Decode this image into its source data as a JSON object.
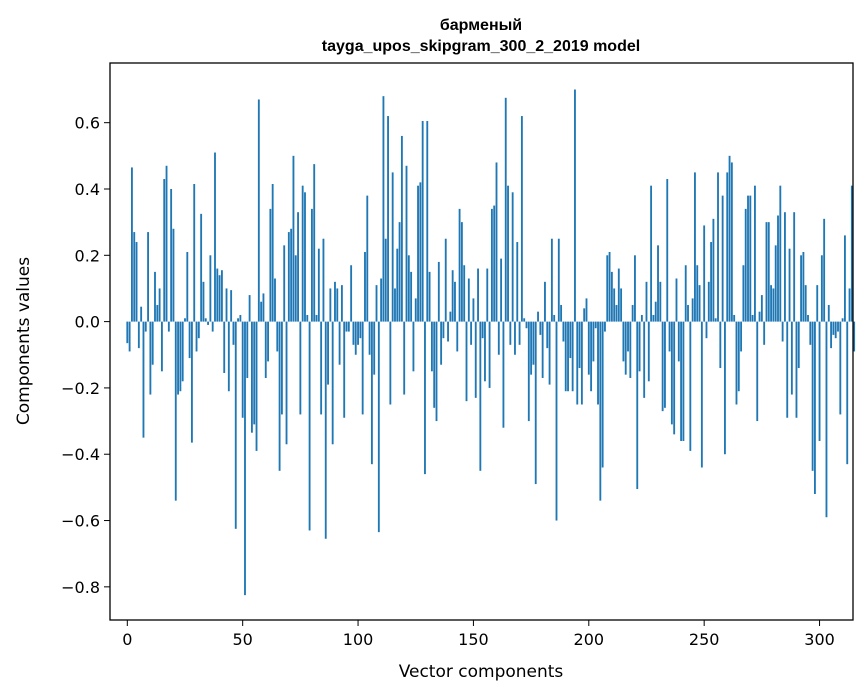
{
  "chart_data": {
    "type": "bar",
    "title": "барменый",
    "subtitle": "tayga_upos_skipgram_300_2_2019 model",
    "xlabel": "Vector components",
    "ylabel": "Components values",
    "xlim": [
      -7.5,
      314.5
    ],
    "ylim": [
      -0.9,
      0.78
    ],
    "xticks": [
      0,
      50,
      100,
      150,
      200,
      250,
      300
    ],
    "yticks": [
      -0.8,
      -0.6,
      -0.4,
      -0.2,
      0.0,
      0.2,
      0.4,
      0.6
    ],
    "ytick_labels": [
      "−0.8",
      "−0.6",
      "−0.4",
      "−0.2",
      "0.0",
      "0.2",
      "0.4",
      "0.6"
    ],
    "grid": false,
    "bar_color": "#1f77b4",
    "values": [
      -0.065,
      -0.09,
      0.465,
      0.27,
      0.24,
      -0.08,
      0.045,
      -0.35,
      -0.03,
      0.27,
      -0.22,
      -0.13,
      0.15,
      0.05,
      0.1,
      -0.15,
      0.43,
      0.47,
      -0.03,
      0.4,
      0.28,
      -0.54,
      -0.22,
      -0.21,
      -0.18,
      0.01,
      0.21,
      -0.11,
      -0.365,
      0.415,
      -0.09,
      -0.05,
      0.325,
      0.12,
      0.01,
      -0.01,
      0.2,
      -0.03,
      0.51,
      0.16,
      0.14,
      0.155,
      -0.155,
      0.1,
      -0.21,
      0.095,
      -0.07,
      -0.625,
      0.01,
      0.02,
      -0.29,
      -0.825,
      -0.17,
      0.08,
      -0.335,
      -0.31,
      -0.39,
      0.67,
      0.06,
      0.085,
      -0.17,
      -0.12,
      0.34,
      0.415,
      0.13,
      -0.09,
      -0.45,
      -0.28,
      0.23,
      -0.37,
      0.27,
      0.28,
      0.5,
      0.2,
      0.33,
      -0.28,
      0.41,
      0.39,
      0.02,
      -0.63,
      0.34,
      0.475,
      0.02,
      0.22,
      -0.28,
      0.25,
      -0.655,
      -0.19,
      0.1,
      -0.37,
      0.12,
      0.1,
      -0.13,
      0.11,
      -0.29,
      -0.03,
      -0.03,
      0.17,
      -0.07,
      -0.1,
      -0.07,
      -0.05,
      -0.28,
      0.21,
      0.38,
      -0.1,
      -0.43,
      -0.16,
      0.11,
      -0.635,
      0.13,
      0.68,
      0.25,
      0.62,
      -0.25,
      0.45,
      0.1,
      0.22,
      0.3,
      0.56,
      -0.22,
      0.47,
      0.2,
      0.15,
      -0.15,
      0.07,
      0.41,
      0.42,
      0.605,
      -0.46,
      0.605,
      0.15,
      -0.15,
      -0.26,
      -0.3,
      0.18,
      -0.13,
      -0.05,
      0.25,
      -0.06,
      0.03,
      0.155,
      0.12,
      -0.09,
      0.34,
      0.3,
      0.17,
      -0.24,
      0.13,
      -0.07,
      0.07,
      -0.23,
      0.16,
      -0.45,
      -0.05,
      -0.18,
      0.16,
      -0.2,
      0.34,
      0.35,
      0.48,
      -0.1,
      0.19,
      -0.32,
      0.675,
      0.41,
      -0.07,
      0.39,
      -0.1,
      0.24,
      -0.07,
      0.62,
      0.01,
      -0.02,
      -0.3,
      -0.16,
      -0.13,
      -0.49,
      0.03,
      -0.04,
      -0.17,
      0.12,
      -0.08,
      -0.19,
      0.25,
      0.02,
      -0.6,
      0.25,
      0.05,
      -0.06,
      -0.21,
      -0.21,
      -0.11,
      -0.21,
      0.7,
      -0.25,
      -0.14,
      -0.25,
      0.04,
      0.07,
      -0.16,
      -0.21,
      -0.12,
      -0.02,
      -0.25,
      -0.54,
      -0.44,
      -0.03,
      0.2,
      0.21,
      0.15,
      0.1,
      0.05,
      0.16,
      0.1,
      -0.12,
      -0.16,
      -0.09,
      -0.17,
      0.05,
      0.2,
      -0.505,
      -0.15,
      0.02,
      -0.23,
      0.12,
      -0.18,
      0.41,
      0.02,
      0.06,
      0.23,
      0.12,
      -0.27,
      -0.26,
      0.43,
      -0.09,
      -0.31,
      -0.34,
      0.13,
      -0.12,
      -0.36,
      -0.36,
      0.17,
      0.05,
      -0.39,
      0.07,
      0.45,
      0.17,
      0.11,
      -0.44,
      0.29,
      -0.05,
      0.12,
      0.24,
      0.31,
      0.01,
      0.45,
      -0.14,
      0.38,
      -0.4,
      0.45,
      0.5,
      0.48,
      0.02,
      -0.25,
      -0.21,
      -0.09,
      0.17,
      0.34,
      0.38,
      0.38,
      0.02,
      0.41,
      -0.3,
      0.03,
      0.08,
      -0.07,
      0.3,
      0.3,
      0.11,
      0.1,
      0.23,
      0.32,
      0.41,
      -0.06,
      0.33,
      -0.29,
      0.22,
      -0.22,
      0.33,
      -0.29,
      -0.14,
      0.2,
      0.21,
      0.11,
      0.02,
      -0.07,
      -0.45,
      -0.52,
      0.11,
      -0.36,
      0.2,
      0.31,
      -0.59,
      0.05,
      -0.08,
      -0.04,
      -0.05,
      -0.03,
      -0.28,
      0.01,
      0.26,
      -0.43,
      0.1,
      0.41,
      -0.09
    ]
  }
}
